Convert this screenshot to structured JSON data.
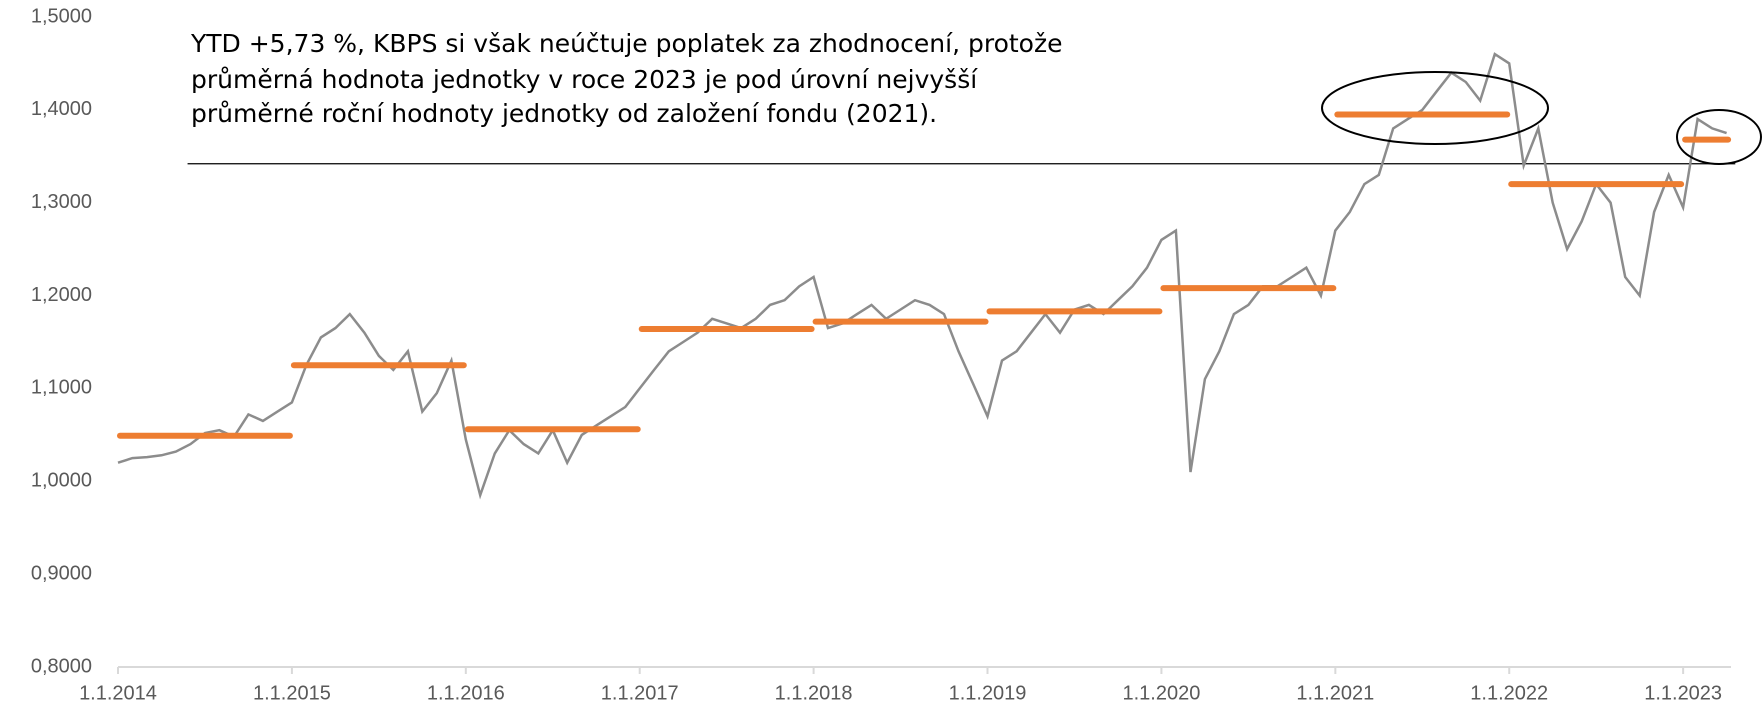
{
  "chart_data": {
    "type": "line",
    "annotation": [
      "YTD +5,73 %, KBPS si však neúčtuje poplatek za zhodnocení, protože",
      "průměrná hodnota jednotky v roce 2023 je pod úrovní nejvyšší",
      "průměrné roční hodnoty jednotky od založení fondu (2021)."
    ],
    "x": [
      2014.0,
      2014.083,
      2014.167,
      2014.25,
      2014.333,
      2014.417,
      2014.5,
      2014.583,
      2014.667,
      2014.75,
      2014.833,
      2014.917,
      2015.0,
      2015.083,
      2015.167,
      2015.25,
      2015.333,
      2015.417,
      2015.5,
      2015.583,
      2015.667,
      2015.75,
      2015.833,
      2015.917,
      2016.0,
      2016.083,
      2016.167,
      2016.25,
      2016.333,
      2016.417,
      2016.5,
      2016.583,
      2016.667,
      2016.75,
      2016.833,
      2016.917,
      2017.0,
      2017.083,
      2017.167,
      2017.25,
      2017.333,
      2017.417,
      2017.5,
      2017.583,
      2017.667,
      2017.75,
      2017.833,
      2017.917,
      2018.0,
      2018.083,
      2018.167,
      2018.25,
      2018.333,
      2018.417,
      2018.5,
      2018.583,
      2018.667,
      2018.75,
      2018.833,
      2018.917,
      2019.0,
      2019.083,
      2019.167,
      2019.25,
      2019.333,
      2019.417,
      2019.5,
      2019.583,
      2019.667,
      2019.75,
      2019.833,
      2019.917,
      2020.0,
      2020.083,
      2020.167,
      2020.25,
      2020.333,
      2020.417,
      2020.5,
      2020.583,
      2020.667,
      2020.75,
      2020.833,
      2020.917,
      2021.0,
      2021.083,
      2021.167,
      2021.25,
      2021.333,
      2021.417,
      2021.5,
      2021.583,
      2021.667,
      2021.75,
      2021.833,
      2021.917,
      2022.0,
      2022.083,
      2022.167,
      2022.25,
      2022.333,
      2022.417,
      2022.5,
      2022.583,
      2022.667,
      2022.75,
      2022.833,
      2022.917,
      2023.0,
      2023.083,
      2023.167,
      2023.25
    ],
    "values": [
      1.02,
      1.025,
      1.026,
      1.028,
      1.032,
      1.04,
      1.052,
      1.055,
      1.048,
      1.072,
      1.065,
      1.075,
      1.085,
      1.125,
      1.155,
      1.165,
      1.18,
      1.16,
      1.135,
      1.12,
      1.14,
      1.075,
      1.095,
      1.13,
      1.045,
      0.985,
      1.03,
      1.055,
      1.04,
      1.03,
      1.055,
      1.02,
      1.05,
      1.06,
      1.07,
      1.08,
      1.1,
      1.12,
      1.14,
      1.15,
      1.16,
      1.175,
      1.17,
      1.165,
      1.175,
      1.19,
      1.195,
      1.21,
      1.22,
      1.165,
      1.17,
      1.18,
      1.19,
      1.175,
      1.185,
      1.195,
      1.19,
      1.18,
      1.14,
      1.105,
      1.07,
      1.13,
      1.14,
      1.16,
      1.18,
      1.16,
      1.185,
      1.19,
      1.18,
      1.195,
      1.21,
      1.23,
      1.26,
      1.27,
      1.01,
      1.11,
      1.14,
      1.18,
      1.19,
      1.21,
      1.21,
      1.22,
      1.23,
      1.2,
      1.27,
      1.29,
      1.32,
      1.33,
      1.38,
      1.39,
      1.4,
      1.42,
      1.44,
      1.43,
      1.41,
      1.46,
      1.45,
      1.34,
      1.38,
      1.3,
      1.25,
      1.28,
      1.32,
      1.3,
      1.22,
      1.2,
      1.29,
      1.33,
      1.295,
      1.39,
      1.38,
      1.375
    ],
    "color": "#8c8c8c",
    "segments": {
      "color": "#ed7d31",
      "x_start": [
        2014.0,
        2015.0,
        2016.0,
        2017.0,
        2018.0,
        2019.0,
        2020.0,
        2021.0,
        2022.0,
        2023.0
      ],
      "x_end": [
        2015.0,
        2016.0,
        2017.0,
        2018.0,
        2019.0,
        2020.0,
        2021.0,
        2022.0,
        2023.0,
        2023.27
      ],
      "values": [
        1.049,
        1.125,
        1.056,
        1.164,
        1.172,
        1.183,
        1.208,
        1.395,
        1.32,
        1.368
      ]
    },
    "reference_line": {
      "value": 1.342,
      "x": [
        2014.4,
        2023.3
      ],
      "color": "#000000"
    },
    "xlim": [
      2014,
      2023.35
    ],
    "ylim": [
      0.8,
      1.5
    ],
    "xticks": [
      {
        "value": 2014,
        "label": "1.1.2014"
      },
      {
        "value": 2015,
        "label": "1.1.2015"
      },
      {
        "value": 2016,
        "label": "1.1.2016"
      },
      {
        "value": 2017,
        "label": "1.1.2017"
      },
      {
        "value": 2018,
        "label": "1.1.2018"
      },
      {
        "value": 2019,
        "label": "1.1.2019"
      },
      {
        "value": 2020,
        "label": "1.1.2020"
      },
      {
        "value": 2021,
        "label": "1.1.2021"
      },
      {
        "value": 2022,
        "label": "1.1.2022"
      },
      {
        "value": 2023,
        "label": "1.1.2023"
      }
    ],
    "yticks": [
      {
        "value": 0.8,
        "label": "0,8000"
      },
      {
        "value": 0.9,
        "label": "0,9000"
      },
      {
        "value": 1.0,
        "label": "1,0000"
      },
      {
        "value": 1.1,
        "label": "1,1000"
      },
      {
        "value": 1.2,
        "label": "1,2000"
      },
      {
        "value": 1.3,
        "label": "1,3000"
      },
      {
        "value": 1.4,
        "label": "1,4000"
      },
      {
        "value": 1.5,
        "label": "1,5000"
      }
    ]
  }
}
